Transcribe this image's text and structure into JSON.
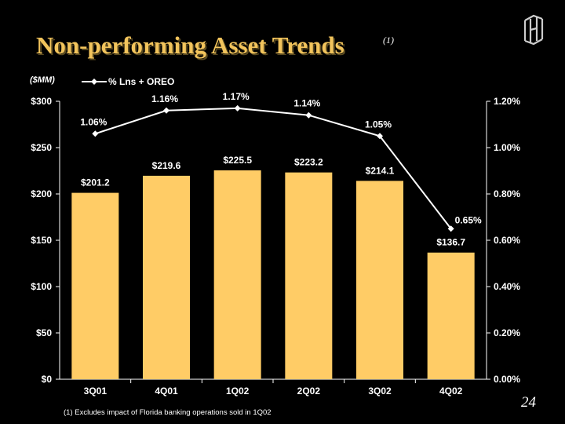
{
  "slide": {
    "title": "Non-performing Asset Trends",
    "title_note": "(1)",
    "units": "($MM)",
    "footnote": "(1)   Excludes impact of Florida banking operations  sold in 1Q02",
    "page_number": "24",
    "logo_icon": "bank-monogram-icon"
  },
  "colors": {
    "background": "#000000",
    "title": "#F2C45C",
    "bar": "#FFCC66",
    "line": "#FFFFFF",
    "text": "#FFFFFF"
  },
  "chart_data": {
    "type": "bar",
    "categories": [
      "3Q01",
      "4Q01",
      "1Q02",
      "2Q02",
      "3Q02",
      "4Q02"
    ],
    "series": [
      {
        "type": "bar",
        "axis": "left",
        "values": [
          201.2,
          219.6,
          225.5,
          223.2,
          214.1,
          136.7
        ],
        "labels": [
          "$201.2",
          "$219.6",
          "$225.5",
          "$223.2",
          "$214.1",
          "$136.7"
        ]
      },
      {
        "name": "% Lns + OREO",
        "type": "line",
        "axis": "right",
        "values": [
          1.06,
          1.16,
          1.17,
          1.14,
          1.05,
          0.65
        ],
        "labels": [
          "1.06%",
          "1.16%",
          "1.17%",
          "1.14%",
          "1.05%",
          "0.65%"
        ]
      }
    ],
    "y_left": {
      "range": [
        0,
        300
      ],
      "ticks": [
        0,
        50,
        100,
        150,
        200,
        250,
        300
      ],
      "tick_labels": [
        "$0",
        "$50",
        "$100",
        "$150",
        "$200",
        "$250",
        "$300"
      ]
    },
    "y_right": {
      "range": [
        0,
        1.2
      ],
      "ticks": [
        0,
        0.2,
        0.4,
        0.6,
        0.8,
        1.0,
        1.2
      ],
      "tick_labels": [
        "0.00%",
        "0.20%",
        "0.40%",
        "0.60%",
        "0.80%",
        "1.00%",
        "1.20%"
      ]
    },
    "legend": {
      "label": "% Lns + OREO",
      "position": "top-left"
    },
    "grid": false
  }
}
